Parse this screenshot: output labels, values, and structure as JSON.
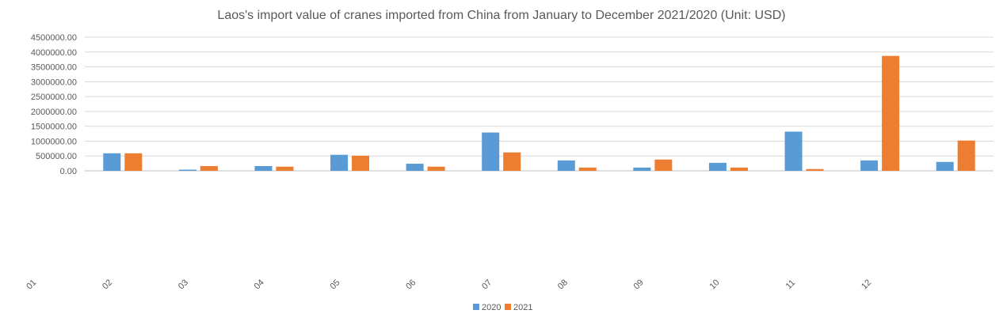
{
  "chart_data": {
    "type": "bar",
    "title": "Laos's import value of cranes imported from China from January to December 2021/2020 (Unit: USD)",
    "xlabel": "",
    "ylabel": "",
    "categories": [
      "01",
      "02",
      "03",
      "04",
      "05",
      "06",
      "07",
      "08",
      "09",
      "10",
      "11",
      "12"
    ],
    "series": [
      {
        "name": "2020",
        "color": "#5B9BD5",
        "values": [
          590000,
          40000,
          160000,
          540000,
          240000,
          1290000,
          350000,
          110000,
          270000,
          1320000,
          350000,
          300000
        ]
      },
      {
        "name": "2021",
        "color": "#ED7D31",
        "values": [
          590000,
          160000,
          140000,
          510000,
          140000,
          620000,
          110000,
          380000,
          110000,
          60000,
          3870000,
          1020000
        ]
      }
    ],
    "ylim": [
      0,
      4500000
    ],
    "yticks": [
      "0.00",
      "500000.00",
      "1000000.00",
      "1500000.00",
      "2000000.00",
      "2500000.00",
      "3000000.00",
      "3500000.00",
      "4000000.00",
      "4500000.00"
    ],
    "grid": true,
    "legend_position": "bottom"
  }
}
